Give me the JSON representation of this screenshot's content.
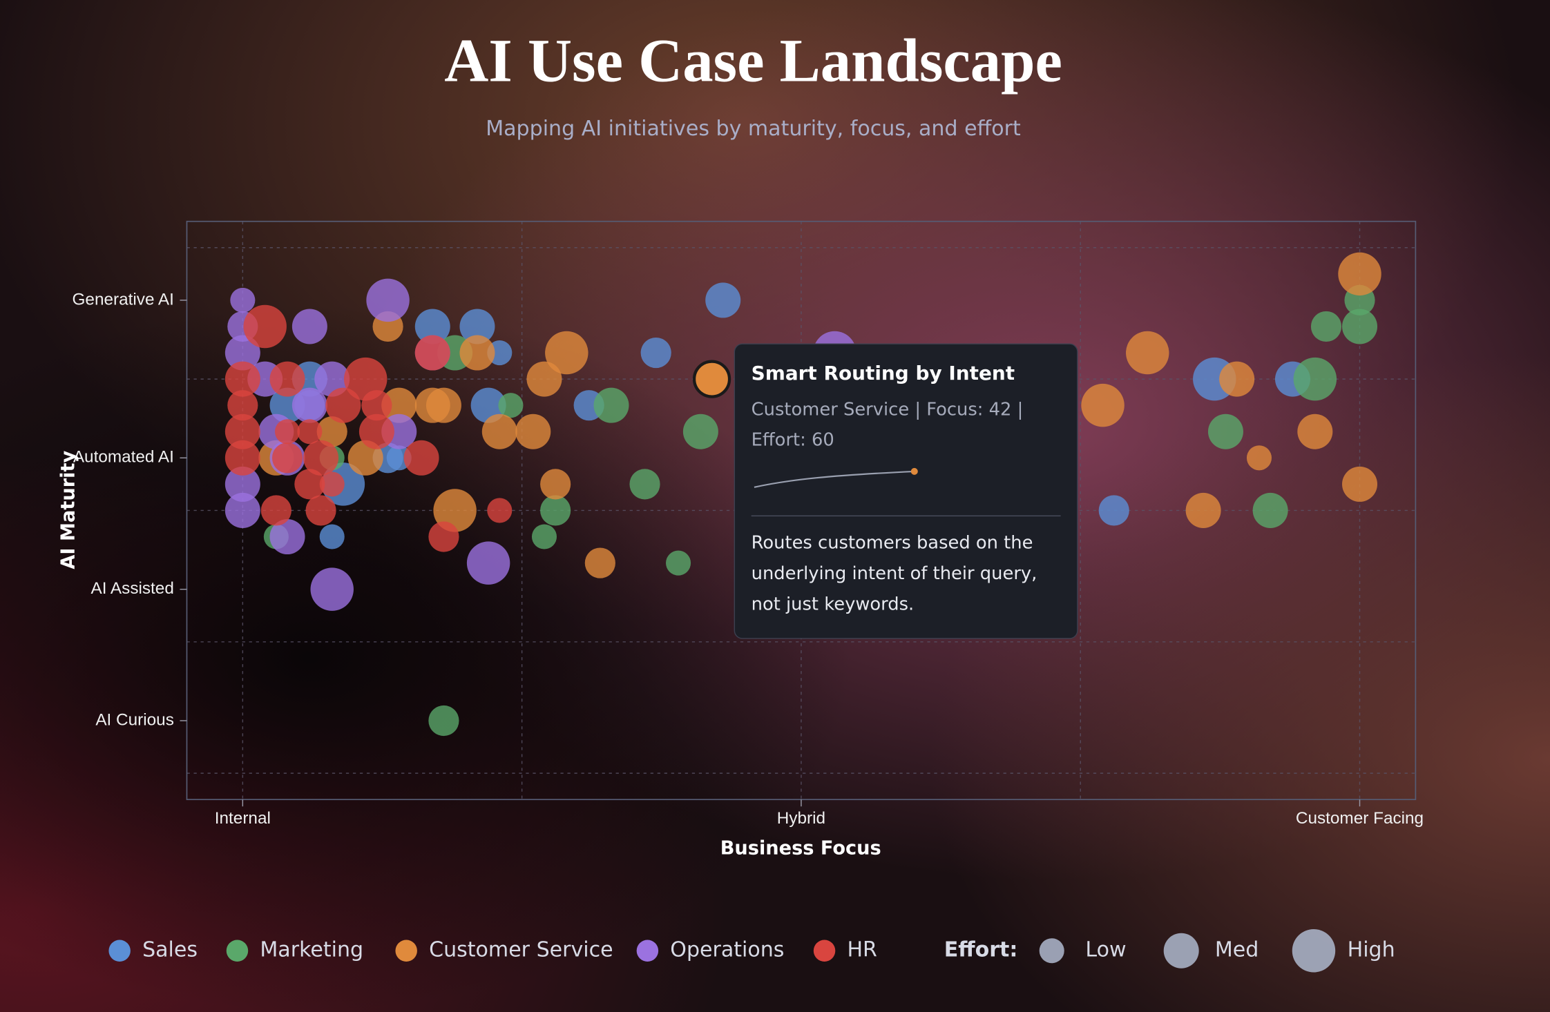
{
  "chart_data": {
    "type": "scatter",
    "title": "AI Use Case Landscape",
    "subtitle": "Mapping AI initiatives by maturity, focus, and effort",
    "x_label": "Business Focus",
    "y_label": "AI Maturity",
    "xlim": [
      -5,
      105
    ],
    "ylim": [
      -5,
      105
    ],
    "xticks": [
      {
        "value": 0,
        "label": "Internal"
      },
      {
        "value": 50,
        "label": "Hybrid"
      },
      {
        "value": 100,
        "label": "Customer Facing"
      }
    ],
    "yticks": [
      {
        "value": 10,
        "label": "AI Curious"
      },
      {
        "value": 35,
        "label": "AI Assisted"
      },
      {
        "value": 60,
        "label": "Automated AI"
      },
      {
        "value": 90,
        "label": "Generative AI"
      }
    ],
    "x_grid": [
      0,
      25,
      50,
      75,
      100
    ],
    "y_grid": [
      0,
      25,
      50,
      75,
      100
    ],
    "grid": true,
    "series": [
      {
        "name": "Sales",
        "color": "#5b8fd6",
        "x": [
          43,
          17,
          21,
          23,
          37,
          6,
          22,
          31,
          13,
          14,
          9,
          8,
          78,
          87,
          94,
          4,
          6
        ],
        "values": [
          90,
          85,
          85,
          80,
          80,
          75,
          70,
          70,
          60,
          60,
          55,
          45,
          50,
          75,
          75,
          70,
          70
        ],
        "size": [
          60,
          60,
          60,
          30,
          45,
          60,
          60,
          45,
          45,
          30,
          90,
          30,
          45,
          90,
          60,
          60,
          45
        ]
      },
      {
        "name": "Marketing",
        "color": "#5aa86a",
        "x": [
          100,
          100,
          97,
          96,
          88,
          92,
          41,
          33,
          24,
          19,
          36,
          28,
          27,
          39,
          3,
          18,
          8
        ],
        "values": [
          90,
          85,
          85,
          75,
          65,
          50,
          65,
          70,
          70,
          80,
          55,
          50,
          45,
          40,
          45,
          10,
          60
        ],
        "size": [
          45,
          60,
          45,
          90,
          60,
          60,
          60,
          60,
          30,
          60,
          45,
          45,
          30,
          30,
          30,
          45,
          30
        ]
      },
      {
        "name": "Customer Service",
        "color": "#e08a3c",
        "x": [
          100,
          81,
          77,
          89,
          96,
          91,
          100,
          86,
          42,
          29,
          27,
          26,
          23,
          21,
          17,
          18,
          14,
          13,
          19,
          28,
          32,
          11,
          8,
          3
        ],
        "values": [
          95,
          80,
          70,
          75,
          65,
          60,
          55,
          50,
          75,
          80,
          75,
          65,
          65,
          80,
          70,
          70,
          70,
          85,
          50,
          55,
          40,
          60,
          65,
          60
        ],
        "size": [
          90,
          90,
          90,
          60,
          60,
          30,
          60,
          60,
          60,
          90,
          60,
          60,
          60,
          60,
          60,
          60,
          60,
          45,
          90,
          45,
          45,
          60,
          45,
          60
        ]
      },
      {
        "name": "Operations",
        "color": "#9b72e0",
        "x": [
          0,
          0,
          0,
          13,
          6,
          53,
          8,
          2,
          6,
          3,
          14,
          17,
          4,
          0,
          0,
          4,
          22,
          8
        ],
        "values": [
          90,
          85,
          80,
          90,
          85,
          80,
          75,
          75,
          70,
          65,
          65,
          80,
          60,
          55,
          50,
          45,
          40,
          35
        ],
        "size": [
          30,
          45,
          60,
          90,
          60,
          90,
          60,
          60,
          60,
          60,
          60,
          60,
          60,
          60,
          60,
          60,
          90,
          90
        ]
      },
      {
        "name": "HR",
        "color": "#d9453f",
        "x": [
          2,
          0,
          4,
          11,
          0,
          9,
          12,
          0,
          4,
          6,
          12,
          0,
          4,
          7,
          16,
          6,
          8,
          3,
          7,
          23,
          18,
          17
        ],
        "values": [
          85,
          75,
          75,
          75,
          70,
          70,
          70,
          65,
          65,
          65,
          65,
          60,
          60,
          60,
          60,
          55,
          55,
          50,
          50,
          50,
          45,
          80
        ],
        "size": [
          90,
          60,
          60,
          90,
          45,
          60,
          45,
          60,
          30,
          30,
          60,
          60,
          45,
          60,
          60,
          45,
          30,
          45,
          45,
          30,
          45,
          60
        ]
      }
    ],
    "size_legend": {
      "title": "Effort:",
      "items": [
        {
          "label": "Low",
          "value": 30
        },
        {
          "label": "Med",
          "value": 60
        },
        {
          "label": "High",
          "value": 90
        }
      ]
    },
    "tooltip": {
      "series": 2,
      "point": 8,
      "title": "Smart Routing by Intent",
      "meta": "Customer Service | Focus: 42 | Effort: 60",
      "description": "Routes customers based on the underlying intent of their query, not just keywords."
    }
  }
}
